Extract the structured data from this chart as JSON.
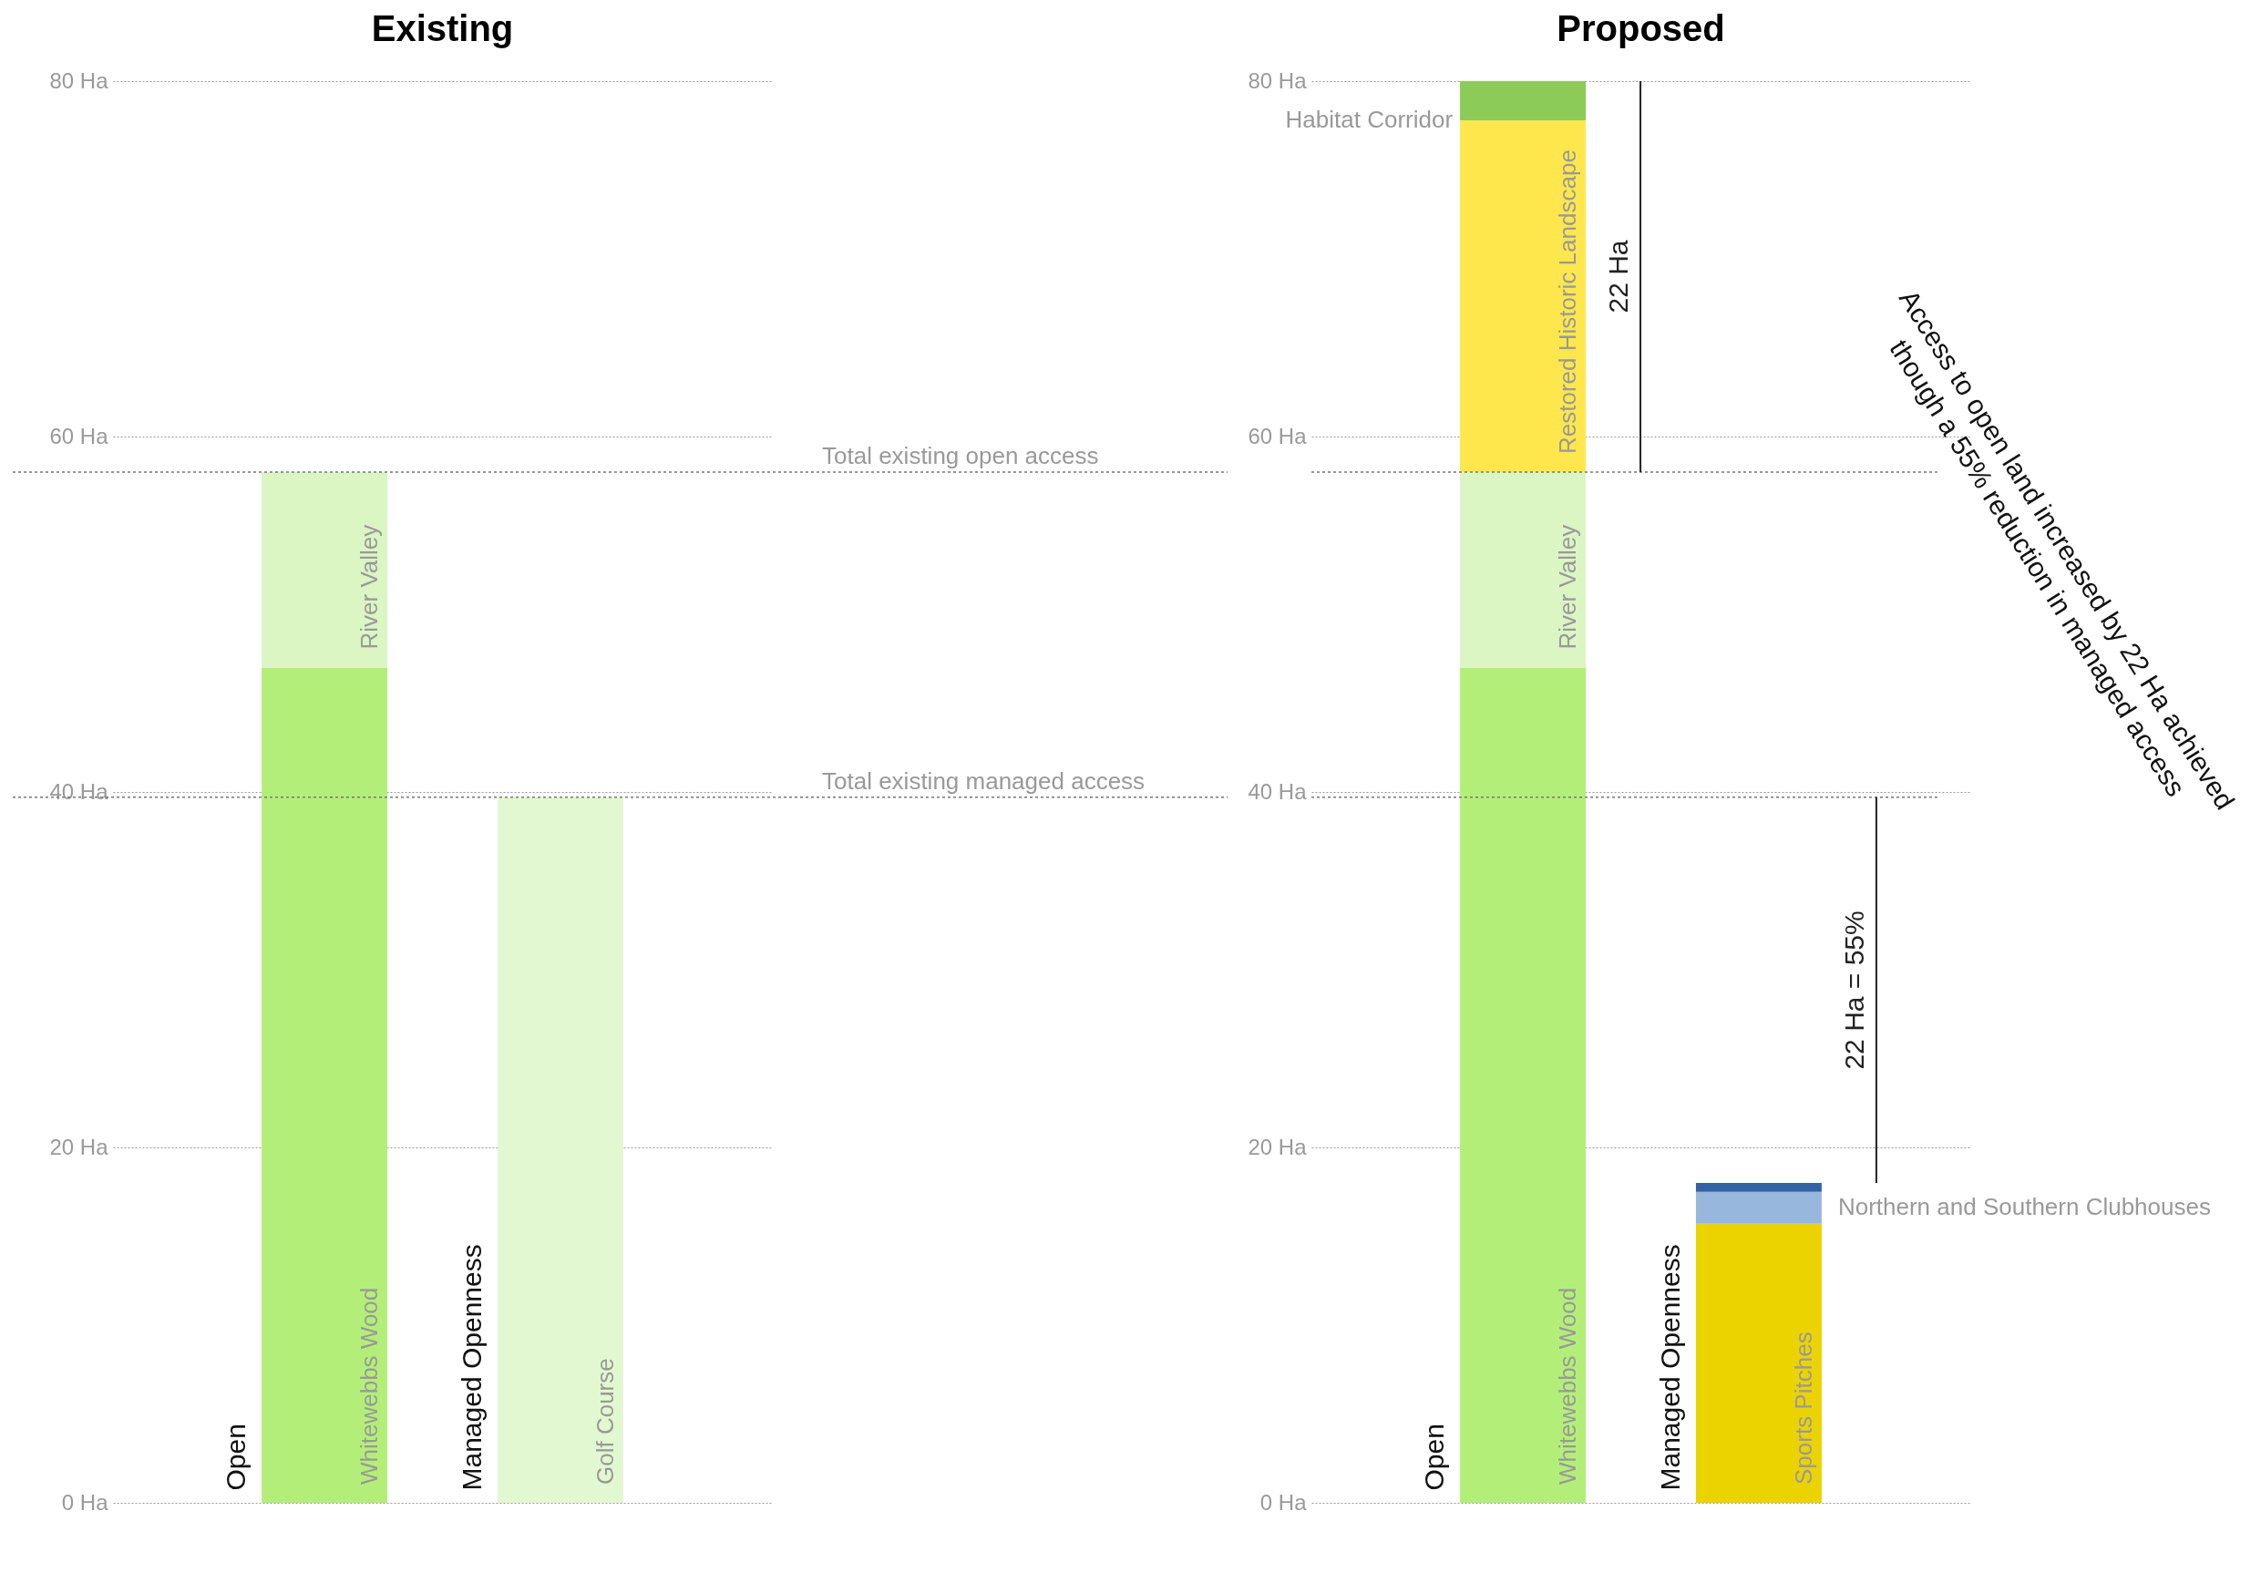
{
  "chart_data": [
    {
      "type": "bar",
      "title": "Existing",
      "stacked": true,
      "grid": "y",
      "categories": [
        "Open",
        "Managed Openness"
      ],
      "ylim": [
        0,
        80
      ],
      "yticks": [
        {
          "value": 0,
          "label": "0 Ha"
        },
        {
          "value": 20,
          "label": "20 Ha"
        },
        {
          "value": 40,
          "label": "40 Ha"
        },
        {
          "value": 60,
          "label": "60 Ha"
        },
        {
          "value": 80,
          "label": "80 Ha"
        }
      ],
      "series": [
        {
          "name": "Whitewebbs Wood",
          "color": "#b3ef78",
          "values": [
            47,
            null
          ]
        },
        {
          "name": "River Valley",
          "color": "#dbf5c3",
          "values": [
            11,
            null
          ]
        },
        {
          "name": "Golf Course",
          "color": "#e2f8d0",
          "values": [
            null,
            39.7
          ]
        }
      ],
      "ref_lines": [
        {
          "axis": "y",
          "value": 58,
          "label": "Total existing open access"
        },
        {
          "axis": "y",
          "value": 39.7,
          "label": "Total existing managed access"
        }
      ]
    },
    {
      "type": "bar",
      "title": "Proposed",
      "stacked": true,
      "grid": "y",
      "categories": [
        "Open",
        "Managed Openness"
      ],
      "ylim": [
        0,
        80
      ],
      "yticks": [
        {
          "value": 0,
          "label": "0 Ha"
        },
        {
          "value": 20,
          "label": "20 Ha"
        },
        {
          "value": 40,
          "label": "40 Ha"
        },
        {
          "value": 60,
          "label": "60 Ha"
        },
        {
          "value": 80,
          "label": "80 Ha"
        }
      ],
      "series": [
        {
          "name": "Whitewebbs Wood",
          "color": "#b3ef78",
          "values": [
            47,
            null
          ]
        },
        {
          "name": "River Valley",
          "color": "#dbf5c3",
          "values": [
            11,
            null
          ]
        },
        {
          "name": "Restored Historic Landscape",
          "color": "#fde74c",
          "values": [
            19.8,
            null
          ]
        },
        {
          "name": "Habitat Corridor",
          "color": "#8ccb57",
          "values": [
            2.2,
            null
          ]
        },
        {
          "name": "Sports Pitches",
          "color": "#ebd300",
          "values": [
            null,
            15.7
          ]
        },
        {
          "name": "Northern and Southern Clubhouses",
          "color": "#97b8dc",
          "values": [
            null,
            1.8
          ]
        },
        {
          "color": "#3463a5",
          "values": [
            null,
            0.5
          ]
        }
      ],
      "ref_lines": [
        {
          "axis": "y",
          "value": 58
        },
        {
          "axis": "y",
          "value": 39.7
        }
      ],
      "annotations": [
        "22 Ha",
        "22 Ha = 55%",
        "Access to open land increased by 22 Ha achieved though a 55% reduction in managed access"
      ]
    }
  ]
}
